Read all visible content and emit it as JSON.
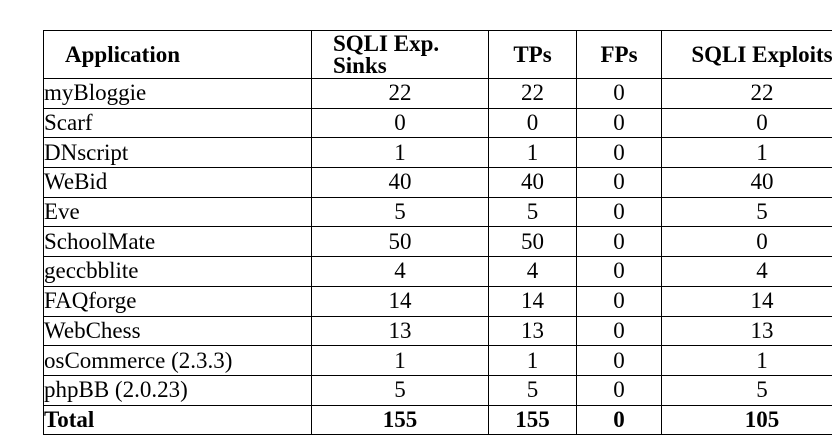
{
  "table": {
    "headers": {
      "application": "Application",
      "sqli_exp_sinks": "SQLI Exp. Sinks",
      "tps": "TPs",
      "fps": "FPs",
      "sqli_exploits": "SQLI Exploits"
    },
    "rows": [
      {
        "application": "myBloggie",
        "sqli_exp_sinks": "22",
        "tps": "22",
        "fps": "0",
        "sqli_exploits": "22"
      },
      {
        "application": "Scarf",
        "sqli_exp_sinks": "0",
        "tps": "0",
        "fps": "0",
        "sqli_exploits": "0"
      },
      {
        "application": "DNscript",
        "sqli_exp_sinks": "1",
        "tps": "1",
        "fps": "0",
        "sqli_exploits": "1"
      },
      {
        "application": "WeBid",
        "sqli_exp_sinks": "40",
        "tps": "40",
        "fps": "0",
        "sqli_exploits": "40"
      },
      {
        "application": "Eve",
        "sqli_exp_sinks": "5",
        "tps": "5",
        "fps": "0",
        "sqli_exploits": "5"
      },
      {
        "application": "SchoolMate",
        "sqli_exp_sinks": "50",
        "tps": "50",
        "fps": "0",
        "sqli_exploits": "0"
      },
      {
        "application": "geccbblite",
        "sqli_exp_sinks": "4",
        "tps": "4",
        "fps": "0",
        "sqli_exploits": "4"
      },
      {
        "application": "FAQforge",
        "sqli_exp_sinks": "14",
        "tps": "14",
        "fps": "0",
        "sqli_exploits": "14"
      },
      {
        "application": "WebChess",
        "sqli_exp_sinks": "13",
        "tps": "13",
        "fps": "0",
        "sqli_exploits": "13"
      },
      {
        "application": "osCommerce (2.3.3)",
        "sqli_exp_sinks": "1",
        "tps": "1",
        "fps": "0",
        "sqli_exploits": "1"
      },
      {
        "application": "phpBB (2.0.23)",
        "sqli_exp_sinks": "5",
        "tps": "5",
        "fps": "0",
        "sqli_exploits": "5"
      }
    ],
    "total": {
      "application": "Total",
      "sqli_exp_sinks": "155",
      "tps": "155",
      "fps": "0",
      "sqli_exploits": "105"
    }
  }
}
